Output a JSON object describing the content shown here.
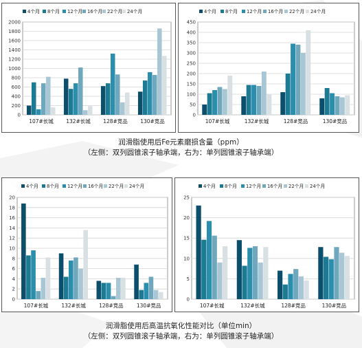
{
  "colors": [
    "#0b4f6c",
    "#1d7a93",
    "#2b8ead",
    "#6fa7bd",
    "#a9c6d4",
    "#d8e0e4"
  ],
  "legend": [
    "4个月",
    "8个月",
    "12个月",
    "16个月",
    "22个月",
    "24个月"
  ],
  "captions": {
    "top": {
      "line1": "润滑脂使用后Fe元素磨损含量（ppm）",
      "line2": "（左侧：双列圆锥滚子轴承端，右为：单列圆锥滚子轴承端）"
    },
    "bottom": {
      "line1": "润滑脂使用后高温抗氧化性能对比（单位min）",
      "line2": "（左侧：双列圆锥滚子轴承端，右为：单列圆锥滚子轴承端）"
    }
  },
  "chart_data": [
    {
      "type": "bar",
      "categories": [
        "107#长城",
        "132#长城",
        "128#竞品",
        "130#竞品"
      ],
      "ylim": [
        0,
        2000
      ],
      "yticks": [
        0,
        200,
        400,
        600,
        800,
        1000,
        1200,
        1400,
        1600,
        1800,
        2000
      ],
      "grid": true,
      "legend_position": "top",
      "series": [
        {
          "name": "4个月",
          "values": [
            200,
            780,
            620,
            500
          ]
        },
        {
          "name": "8个月",
          "values": [
            700,
            560,
            680,
            740
          ]
        },
        {
          "name": "12个月",
          "values": [
            120,
            680,
            1320,
            920
          ]
        },
        {
          "name": "16个月",
          "values": [
            680,
            1020,
            870,
            860
          ]
        },
        {
          "name": "22个月",
          "values": [
            820,
            100,
            270,
            1860
          ]
        },
        {
          "name": "24个月",
          "values": [
            160,
            190,
            480,
            1270
          ]
        }
      ]
    },
    {
      "type": "bar",
      "categories": [
        "107#长城",
        "132#长城",
        "128#竞品",
        "130#竞品"
      ],
      "ylim": [
        0,
        450
      ],
      "yticks": [
        0,
        50,
        100,
        150,
        200,
        250,
        300,
        350,
        400,
        450
      ],
      "grid": true,
      "legend_position": "top",
      "series": [
        {
          "name": "4个月",
          "values": [
            50,
            90,
            110,
            80
          ]
        },
        {
          "name": "8个月",
          "values": [
            105,
            145,
            200,
            130
          ]
        },
        {
          "name": "12个月",
          "values": [
            120,
            145,
            345,
            105
          ]
        },
        {
          "name": "16个月",
          "values": [
            135,
            140,
            340,
            90
          ]
        },
        {
          "name": "22个月",
          "values": [
            125,
            210,
            300,
            85
          ]
        },
        {
          "name": "24个月",
          "values": [
            190,
            100,
            410,
            95
          ]
        }
      ]
    },
    {
      "type": "bar",
      "categories": [
        "107#长城",
        "132#长城",
        "128#竞品",
        "130#竞品"
      ],
      "ylim": [
        0,
        20
      ],
      "yticks": [
        0,
        2,
        4,
        6,
        8,
        10,
        12,
        14,
        16,
        18,
        20
      ],
      "grid": true,
      "legend_position": "top",
      "series": [
        {
          "name": "4个月",
          "values": [
            18.8,
            9.0,
            3.6,
            6.8
          ]
        },
        {
          "name": "8个月",
          "values": [
            8.6,
            4.4,
            3.2,
            1.8
          ]
        },
        {
          "name": "12个月",
          "values": [
            9.6,
            7.6,
            3.2,
            3.2
          ]
        },
        {
          "name": "16个月",
          "values": [
            1.6,
            8.2,
            0.6,
            4.4
          ]
        },
        {
          "name": "22个月",
          "values": [
            4.2,
            6.0,
            4.2,
            1.8
          ]
        },
        {
          "name": "24个月",
          "values": [
            8.2,
            13.6,
            4.2,
            1.4
          ]
        }
      ]
    },
    {
      "type": "bar",
      "categories": [
        "107#长城",
        "132#长城",
        "128#竞品",
        "130#竞品"
      ],
      "ylim": [
        0,
        25
      ],
      "yticks": [
        0,
        5,
        10,
        15,
        20,
        25
      ],
      "grid": true,
      "legend_position": "top",
      "series": [
        {
          "name": "4个月",
          "values": [
            23.0,
            14.5,
            7.0,
            12.8
          ]
        },
        {
          "name": "8个月",
          "values": [
            14.6,
            8.2,
            3.6,
            10.4
          ]
        },
        {
          "name": "12个月",
          "values": [
            19.2,
            12.6,
            6.2,
            9.8
          ]
        },
        {
          "name": "16个月",
          "values": [
            15.6,
            13.0,
            7.4,
            12.8
          ]
        },
        {
          "name": "22个月",
          "values": [
            9.0,
            9.0,
            5.6,
            11.4
          ]
        },
        {
          "name": "24个月",
          "values": [
            13.0,
            12.8,
            4.6,
            10.6
          ]
        }
      ]
    }
  ]
}
